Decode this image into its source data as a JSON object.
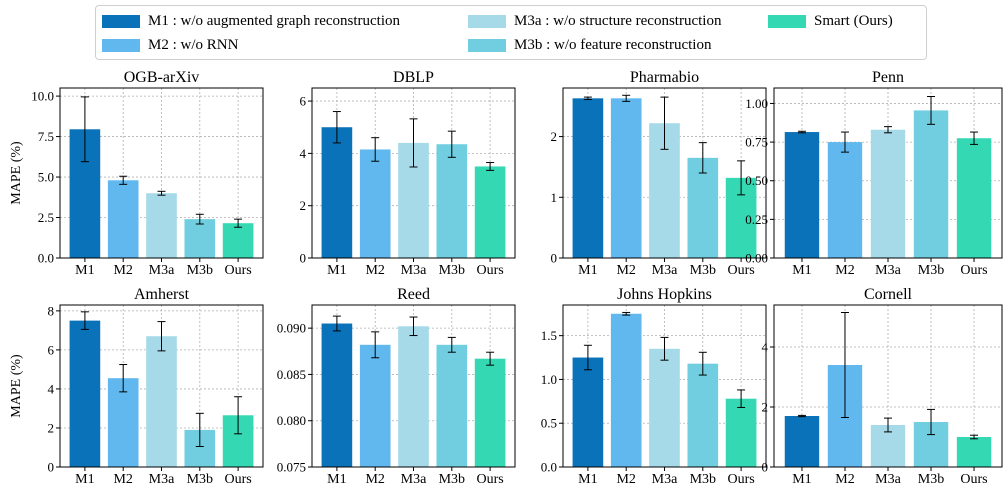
{
  "legend": {
    "items": [
      {
        "key": "M1",
        "label": "M1 : w/o augmented graph reconstruction",
        "color": "#0a72b8"
      },
      {
        "key": "M2",
        "label": "M2 : w/o RNN",
        "color": "#60b8ee"
      },
      {
        "key": "M3a",
        "label": "M3a : w/o structure reconstruction",
        "color": "#a6dae8"
      },
      {
        "key": "M3b",
        "label": "M3b : w/o feature reconstruction",
        "color": "#70cee0"
      },
      {
        "key": "Ours",
        "label": "Smart (Ours)",
        "color": "#34d9b4"
      }
    ]
  },
  "chart_data": [
    {
      "type": "bar",
      "title": "OGB-arXiv",
      "ylabel": "MAPE (%)",
      "categories": [
        "M1",
        "M2",
        "M3a",
        "M3b",
        "Ours"
      ],
      "values": [
        7.95,
        4.8,
        4.0,
        2.4,
        2.15
      ],
      "errors": [
        2.0,
        0.25,
        0.12,
        0.3,
        0.25
      ],
      "ylim": [
        0,
        10.5
      ],
      "yticks": [
        0,
        2.5,
        5,
        7.5,
        10
      ],
      "yticklabels": [
        "0.0",
        "2.5",
        "5.0",
        "7.5",
        "10.0"
      ],
      "grid": true
    },
    {
      "type": "bar",
      "title": "DBLP",
      "ylabel": "",
      "categories": [
        "M1",
        "M2",
        "M3a",
        "M3b",
        "Ours"
      ],
      "values": [
        5.0,
        4.15,
        4.4,
        4.35,
        3.5
      ],
      "errors": [
        0.6,
        0.45,
        0.92,
        0.5,
        0.15
      ],
      "ylim": [
        0,
        6.5
      ],
      "yticks": [
        0,
        2,
        4,
        6
      ],
      "yticklabels": [
        "0",
        "2",
        "4",
        "6"
      ],
      "grid": true
    },
    {
      "type": "bar",
      "title": "Pharmabio",
      "ylabel": "",
      "categories": [
        "M1",
        "M2",
        "M3a",
        "M3b",
        "Ours"
      ],
      "values": [
        2.63,
        2.63,
        2.22,
        1.65,
        1.32
      ],
      "errors": [
        0.02,
        0.05,
        0.43,
        0.25,
        0.28
      ],
      "ylim": [
        0,
        2.8
      ],
      "yticks": [
        0,
        1,
        2
      ],
      "yticklabels": [
        "0",
        "1",
        "2"
      ],
      "grid": true
    },
    {
      "type": "bar",
      "title": "Penn",
      "ylabel": "",
      "categories": [
        "M1",
        "M2",
        "M3a",
        "M3b",
        "Ours"
      ],
      "values": [
        0.815,
        0.75,
        0.83,
        0.955,
        0.775
      ],
      "errors": [
        0.005,
        0.065,
        0.02,
        0.09,
        0.04
      ],
      "ylim": [
        0,
        1.1
      ],
      "yticks": [
        0,
        0.25,
        0.5,
        0.75,
        1.0
      ],
      "yticklabels": [
        "0.00",
        "0.25",
        "0.50",
        "0.75",
        "1.00"
      ],
      "grid": true
    },
    {
      "type": "bar",
      "title": "Amherst",
      "ylabel": "MAPE (%)",
      "categories": [
        "M1",
        "M2",
        "M3a",
        "M3b",
        "Ours"
      ],
      "values": [
        7.5,
        4.55,
        6.7,
        1.9,
        2.65
      ],
      "errors": [
        0.45,
        0.7,
        0.75,
        0.85,
        0.95
      ],
      "ylim": [
        0,
        8.3
      ],
      "yticks": [
        0,
        2,
        4,
        6,
        8
      ],
      "yticklabels": [
        "0",
        "2",
        "4",
        "6",
        "8"
      ],
      "grid": true
    },
    {
      "type": "bar",
      "title": "Reed",
      "ylabel": "",
      "categories": [
        "M1",
        "M2",
        "M3a",
        "M3b",
        "Ours"
      ],
      "values": [
        0.0905,
        0.0882,
        0.0902,
        0.0882,
        0.0867
      ],
      "errors": [
        0.0008,
        0.0014,
        0.001,
        0.0008,
        0.0007
      ],
      "ylim": [
        0.075,
        0.0925
      ],
      "yticks": [
        0.075,
        0.08,
        0.085,
        0.09
      ],
      "yticklabels": [
        "0.075",
        "0.080",
        "0.085",
        "0.090"
      ],
      "grid": true
    },
    {
      "type": "bar",
      "title": "Johns Hopkins",
      "ylabel": "",
      "categories": [
        "M1",
        "M2",
        "M3a",
        "M3b",
        "Ours"
      ],
      "values": [
        1.25,
        1.75,
        1.35,
        1.18,
        0.78
      ],
      "errors": [
        0.14,
        0.015,
        0.13,
        0.13,
        0.1
      ],
      "ylim": [
        0,
        1.85
      ],
      "yticks": [
        0,
        0.5,
        1.0,
        1.5
      ],
      "yticklabels": [
        "0.0",
        "0.5",
        "1.0",
        "1.5"
      ],
      "grid": true
    },
    {
      "type": "bar",
      "title": "Cornell",
      "ylabel": "",
      "categories": [
        "M1",
        "M2",
        "M3a",
        "M3b",
        "Ours"
      ],
      "values": [
        1.7,
        3.4,
        1.4,
        1.5,
        1.0
      ],
      "errors": [
        0.02,
        1.75,
        0.23,
        0.42,
        0.06
      ],
      "ylim": [
        0,
        5.4
      ],
      "yticks": [
        0,
        2,
        4
      ],
      "yticklabels": [
        "0",
        "2",
        "4"
      ],
      "grid": true
    }
  ]
}
